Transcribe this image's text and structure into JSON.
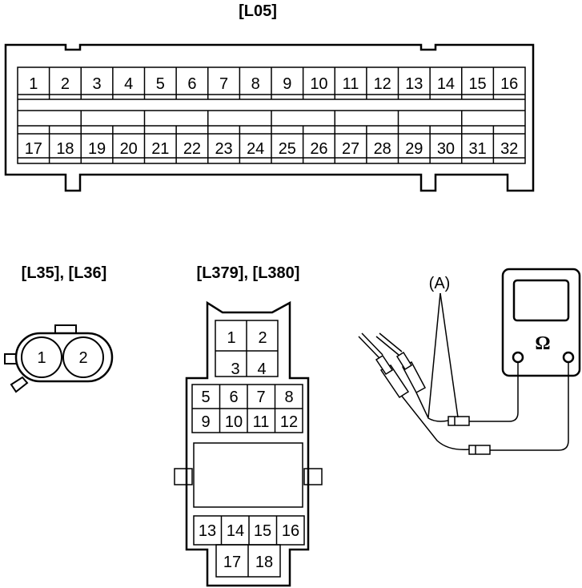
{
  "connector_l05": {
    "title": "[L05]",
    "top_row_pins": [
      "1",
      "2",
      "3",
      "4",
      "5",
      "6",
      "7",
      "8",
      "9",
      "10",
      "11",
      "12",
      "13",
      "14",
      "15",
      "16"
    ],
    "bottom_row_pins": [
      "17",
      "18",
      "19",
      "20",
      "21",
      "22",
      "23",
      "24",
      "25",
      "26",
      "27",
      "28",
      "29",
      "30",
      "31",
      "32"
    ]
  },
  "connector_l35_l36": {
    "title": "[L35], [L36]",
    "pins": [
      "1",
      "2"
    ]
  },
  "connector_l379_l380": {
    "title": "[L379], [L380]",
    "pins_top": [
      "1",
      "2",
      "3",
      "4"
    ],
    "pins_middle": [
      "5",
      "6",
      "7",
      "8",
      "9",
      "10",
      "11",
      "12"
    ],
    "pins_bottom": [
      "13",
      "14",
      "15",
      "16",
      "17",
      "18"
    ]
  },
  "multimeter": {
    "callout_label": "(A)",
    "symbol": "Ω"
  }
}
